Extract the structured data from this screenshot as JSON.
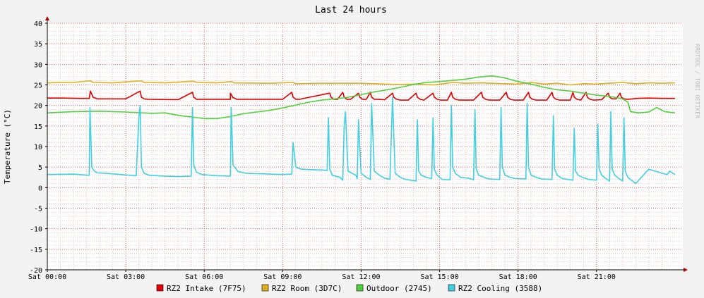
{
  "chart_data": {
    "type": "line",
    "title": "Last 24 hours",
    "ylabel": "Temperature (°C)",
    "watermark": "RRDTOOL / TOBI OETIKER",
    "xlim": [
      0,
      24.3
    ],
    "x_unit": "hours",
    "ylim": [
      -20,
      40
    ],
    "yticks": [
      -20,
      -15,
      -10,
      -5,
      0,
      5,
      10,
      15,
      20,
      25,
      30,
      35,
      40
    ],
    "xticks": [
      {
        "x": 0,
        "label": "Sat 00:00"
      },
      {
        "x": 3,
        "label": "Sat 03:00"
      },
      {
        "x": 6,
        "label": "Sat 06:00"
      },
      {
        "x": 9,
        "label": "Sat 09:00"
      },
      {
        "x": 12,
        "label": "Sat 12:00"
      },
      {
        "x": 15,
        "label": "Sat 15:00"
      },
      {
        "x": 18,
        "label": "Sat 18:00"
      },
      {
        "x": 21,
        "label": "Sat 21:00"
      }
    ],
    "grid": true,
    "legend_position": "bottom",
    "colors": {
      "background": "#f3f3f3",
      "canvas": "#ffffff",
      "minor_grid": "#e8c8c8",
      "major_grid": "#e06060",
      "axis": "#000000",
      "arrow": "#aa0000"
    },
    "series": [
      {
        "name": "RZ2 Intake (7F75)",
        "color": "#e00000",
        "x": [
          0,
          0.6,
          1.2,
          1.6,
          1.65,
          1.75,
          1.9,
          3,
          3.55,
          3.6,
          3.7,
          3.85,
          5,
          5.55,
          5.6,
          5.7,
          5.85,
          7,
          7.0,
          7.1,
          7.25,
          8,
          9,
          9.35,
          9.4,
          9.5,
          9.65,
          10.8,
          10.85,
          10.95,
          11.1,
          11.3,
          11.35,
          11.45,
          11.6,
          11.9,
          11.95,
          12.05,
          12.2,
          12.35,
          12.4,
          12.5,
          12.65,
          12.9,
          13.2,
          13.25,
          13.35,
          13.5,
          13.8,
          14.1,
          14.15,
          14.25,
          14.4,
          14.75,
          14.8,
          14.9,
          15.05,
          15.3,
          15.45,
          15.5,
          15.6,
          15.75,
          16.3,
          16.6,
          16.65,
          16.75,
          16.9,
          17.3,
          17.55,
          17.6,
          17.7,
          17.85,
          18.2,
          18.4,
          18.45,
          18.55,
          18.7,
          19.1,
          19.3,
          19.35,
          19.45,
          19.6,
          20,
          20.1,
          20.15,
          20.25,
          20.4,
          20.6,
          20.65,
          20.75,
          20.9,
          21.2,
          21.45,
          21.5,
          21.6,
          21.75,
          21.9,
          21.95,
          22.05,
          22.2,
          22.4,
          22.5,
          23,
          23.5,
          24
        ],
        "y": [
          21.8,
          21.8,
          21.7,
          21.7,
          23.5,
          22.0,
          21.6,
          21.6,
          23.5,
          22.0,
          21.6,
          21.5,
          21.4,
          23.2,
          22.0,
          21.5,
          21.5,
          21.5,
          23.0,
          21.9,
          21.5,
          21.5,
          21.5,
          23.2,
          22.0,
          21.5,
          21.5,
          23.0,
          22.0,
          21.5,
          21.5,
          23.2,
          22.0,
          21.5,
          21.5,
          23.0,
          22.0,
          21.5,
          21.5,
          23.2,
          22.0,
          21.5,
          21.5,
          21.4,
          23.0,
          22.0,
          21.5,
          21.3,
          21.3,
          23.0,
          22.0,
          21.5,
          21.3,
          23.0,
          22.0,
          21.5,
          21.3,
          21.3,
          23.2,
          22.0,
          21.5,
          21.3,
          21.3,
          23.2,
          22.0,
          21.5,
          21.3,
          21.3,
          23.2,
          22.0,
          21.5,
          21.3,
          21.3,
          23.2,
          22.0,
          21.5,
          21.3,
          21.3,
          23.2,
          22.0,
          21.5,
          21.3,
          21.3,
          23.2,
          22.0,
          21.5,
          21.3,
          23.2,
          22.0,
          21.5,
          21.3,
          21.4,
          23.0,
          22.0,
          21.6,
          21.6,
          23.0,
          22.0,
          21.6,
          21.5,
          21.6,
          21.7,
          21.8,
          21.7,
          21.7
        ]
      },
      {
        "name": "RZ2 Room (3D7C)",
        "color": "#e0b020",
        "x": [
          0,
          1,
          1.65,
          1.75,
          2.5,
          3.6,
          3.7,
          4.5,
          5.6,
          5.7,
          6.5,
          7.05,
          7.15,
          8.5,
          9.4,
          9.5,
          10.5,
          12,
          12.5,
          13.5,
          14,
          14.8,
          15.5,
          16,
          16.5,
          17.5,
          18,
          18.5,
          19,
          19.5,
          20,
          20.5,
          21,
          21.5,
          22,
          22.5,
          23,
          23.5,
          24
        ],
        "y": [
          25.5,
          25.6,
          26.0,
          25.6,
          25.5,
          26.0,
          25.6,
          25.5,
          25.9,
          25.6,
          25.5,
          25.8,
          25.5,
          25.4,
          25.6,
          25.3,
          25.4,
          25.4,
          25.3,
          25.1,
          25.2,
          25.0,
          25.6,
          25.4,
          25.5,
          25.3,
          25.2,
          25.6,
          25.2,
          25.4,
          25.0,
          25.3,
          25.2,
          25.4,
          25.6,
          25.3,
          25.5,
          25.4,
          25.5
        ]
      },
      {
        "name": "Outdoor (2745)",
        "color": "#50d040",
        "x": [
          0,
          1,
          2,
          3,
          4,
          4.5,
          5,
          5.5,
          6,
          6.5,
          7,
          7.5,
          8,
          8.5,
          9,
          9.5,
          10,
          10.5,
          11,
          11.5,
          12,
          12.5,
          13,
          13.5,
          14,
          14.5,
          15,
          15.5,
          16,
          16.5,
          17,
          17.5,
          18,
          18.5,
          19,
          19.5,
          20,
          20.5,
          21,
          21.5,
          22,
          22.2,
          22.3,
          22.6,
          23,
          23.3,
          23.6,
          24
        ],
        "y": [
          18.2,
          18.5,
          18.6,
          18.4,
          18.1,
          18.2,
          17.6,
          17.2,
          16.8,
          16.8,
          17.3,
          18.0,
          18.4,
          18.8,
          19.4,
          20.1,
          20.8,
          21.3,
          21.6,
          22.0,
          22.6,
          23.3,
          23.8,
          24.4,
          25.1,
          25.6,
          25.8,
          26.1,
          26.4,
          26.9,
          27.2,
          26.7,
          25.8,
          25.2,
          24.4,
          23.8,
          23.5,
          23.0,
          22.5,
          22.2,
          21.6,
          20.8,
          18.5,
          18.2,
          18.4,
          19.5,
          18.5,
          18.2
        ]
      },
      {
        "name": "RZ2 Cooling (3588)",
        "color": "#40d0e0",
        "x": [
          0,
          1,
          1.6,
          1.63,
          1.7,
          1.8,
          1.9,
          2.2,
          2.6,
          3,
          3.4,
          3.5,
          3.55,
          3.6,
          3.7,
          3.9,
          4.2,
          4.5,
          5,
          5.5,
          5.55,
          5.6,
          5.7,
          5.9,
          6.5,
          7.0,
          7.03,
          7.1,
          7.3,
          7.6,
          8,
          8.5,
          9,
          9.35,
          9.4,
          9.5,
          9.7,
          10,
          10.5,
          10.7,
          10.75,
          10.8,
          10.9,
          11.2,
          11.3,
          11.35,
          11.4,
          11.5,
          11.8,
          11.85,
          11.9,
          12.0,
          12.2,
          12.35,
          12.4,
          12.5,
          12.7,
          12.9,
          13.1,
          13.2,
          13.3,
          13.5,
          13.7,
          14.1,
          14.15,
          14.2,
          14.3,
          14.5,
          14.7,
          14.75,
          14.8,
          14.9,
          15.1,
          15.4,
          15.45,
          15.5,
          15.6,
          15.8,
          16.1,
          16.3,
          16.35,
          16.4,
          16.5,
          16.7,
          16.9,
          17.3,
          17.35,
          17.4,
          17.5,
          17.7,
          17.9,
          18.3,
          18.35,
          18.4,
          18.5,
          18.7,
          18.9,
          19.3,
          19.35,
          19.4,
          19.5,
          19.7,
          19.9,
          20.1,
          20.15,
          20.2,
          20.3,
          20.5,
          20.7,
          21.0,
          21.05,
          21.1,
          21.2,
          21.4,
          21.5,
          21.55,
          21.6,
          21.7,
          21.9,
          22.0,
          22.05,
          22.1,
          22.2,
          22.5,
          23,
          23.5,
          23.7,
          23.8,
          24
        ],
        "y": [
          3.2,
          3.3,
          3.0,
          19.5,
          5.0,
          4.0,
          3.6,
          3.5,
          3.3,
          3.1,
          2.9,
          17.0,
          20.0,
          5.0,
          3.5,
          3.0,
          2.9,
          2.8,
          2.7,
          2.8,
          19.5,
          5.5,
          3.8,
          3.2,
          2.9,
          2.8,
          19.5,
          5.5,
          3.9,
          3.5,
          3.4,
          3.3,
          3.2,
          3.3,
          11.0,
          5.0,
          4.5,
          4.4,
          4.3,
          4.2,
          17.0,
          4.5,
          3.0,
          2.5,
          1.8,
          15.0,
          18.5,
          4.0,
          3.0,
          2.2,
          16.5,
          3.5,
          2.5,
          2.0,
          20.5,
          4.0,
          3.0,
          2.3,
          2.0,
          22.0,
          3.5,
          2.5,
          2.0,
          1.6,
          16.5,
          4.0,
          3.0,
          2.5,
          2.2,
          17.0,
          4.5,
          3.0,
          2.0,
          1.9,
          20.0,
          5.0,
          3.5,
          2.5,
          2.3,
          1.9,
          19.0,
          4.5,
          3.0,
          2.5,
          2.1,
          2.0,
          19.5,
          5.0,
          3.0,
          2.5,
          2.2,
          2.1,
          20.5,
          5.0,
          3.0,
          2.5,
          2.1,
          2.0,
          17.5,
          4.5,
          3.0,
          2.2,
          2.0,
          1.8,
          14.5,
          4.0,
          3.0,
          2.4,
          2.0,
          1.8,
          15.5,
          4.5,
          3.0,
          2.0,
          1.6,
          18.5,
          4.5,
          3.0,
          2.0,
          1.6,
          17.0,
          4.0,
          2.5,
          1.0,
          4.5,
          3.5,
          3.2,
          4.0,
          3.2
        ]
      }
    ]
  }
}
